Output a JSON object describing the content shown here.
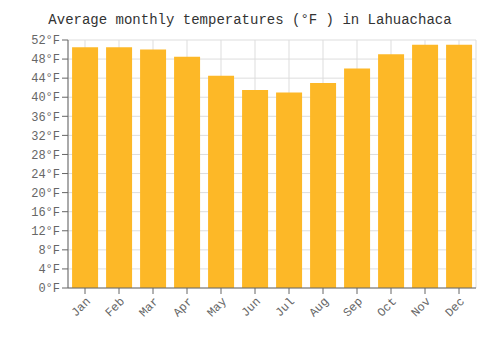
{
  "chart_data": {
    "type": "bar",
    "title": "Average monthly temperatures (°F ) in Lahuachaca",
    "categories": [
      "Jan",
      "Feb",
      "Mar",
      "Apr",
      "May",
      "Jun",
      "Jul",
      "Aug",
      "Sep",
      "Oct",
      "Nov",
      "Dec"
    ],
    "values": [
      50.5,
      50.5,
      50.0,
      48.5,
      44.5,
      41.5,
      41.0,
      43.0,
      46.0,
      49.0,
      51.0,
      51.0
    ],
    "color": "#FDB827",
    "ylim": [
      0,
      52
    ],
    "yticks": [
      {
        "value": 0,
        "label": "0°F"
      },
      {
        "value": 4,
        "label": "4°F"
      },
      {
        "value": 8,
        "label": "8°F"
      },
      {
        "value": 12,
        "label": "12°F"
      },
      {
        "value": 16,
        "label": "16°F"
      },
      {
        "value": 20,
        "label": "20°F"
      },
      {
        "value": 24,
        "label": "24°F"
      },
      {
        "value": 28,
        "label": "28°F"
      },
      {
        "value": 32,
        "label": "32°F"
      },
      {
        "value": 36,
        "label": "36°F"
      },
      {
        "value": 40,
        "label": "40°F"
      },
      {
        "value": 44,
        "label": "44°F"
      },
      {
        "value": 48,
        "label": "48°F"
      },
      {
        "value": 52,
        "label": "52°F"
      }
    ],
    "grid": true
  }
}
